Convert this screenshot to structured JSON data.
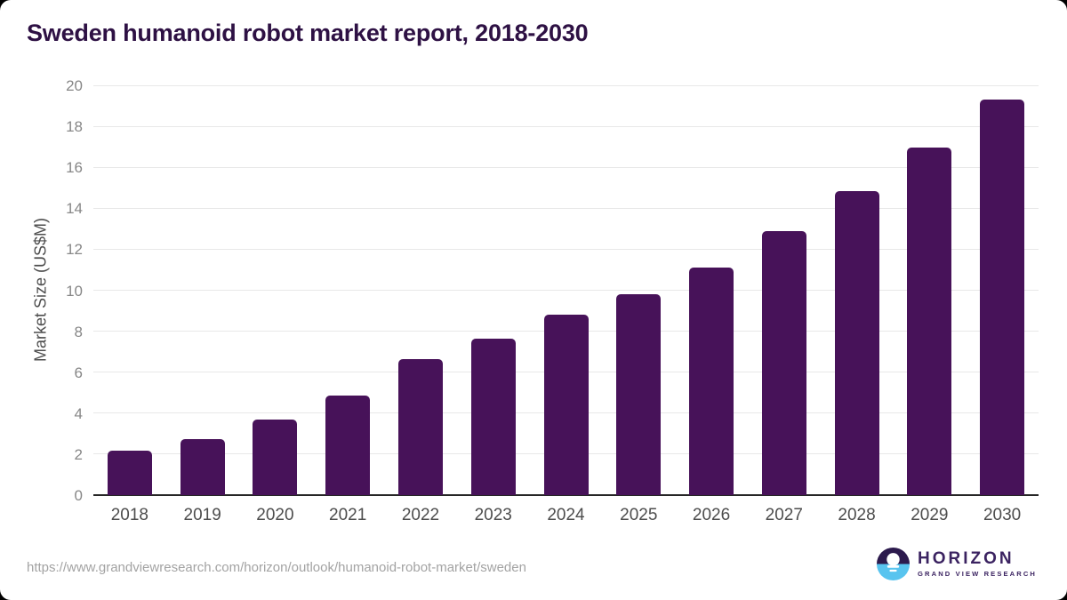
{
  "header": {
    "title": "Sweden humanoid robot market report, 2018-2030"
  },
  "chart_data": {
    "type": "bar",
    "categories": [
      "2018",
      "2019",
      "2020",
      "2021",
      "2022",
      "2023",
      "2024",
      "2025",
      "2026",
      "2027",
      "2028",
      "2029",
      "2030"
    ],
    "values": [
      2.15,
      2.75,
      3.7,
      4.85,
      6.65,
      7.65,
      8.8,
      9.8,
      11.1,
      12.9,
      14.85,
      16.95,
      19.3
    ],
    "title": "Sweden humanoid robot market report, 2018-2030",
    "xlabel": "",
    "ylabel": "Market Size (US$M)",
    "ylim": [
      0,
      20
    ],
    "ytick_step": 2,
    "grid": true,
    "legend": false,
    "bar_color": "#471259"
  },
  "footer": {
    "source_url": "https://www.grandviewresearch.com/horizon/outlook/humanoid-robot-market/sweden",
    "logo": {
      "brand": "HORIZON",
      "tagline": "GRAND VIEW RESEARCH"
    }
  },
  "colors": {
    "bar": "#471259",
    "title_text": "#2e1144",
    "axis_line": "#262626",
    "gridline": "#e8e8e8",
    "tick_label": "#878787",
    "x_label": "#4d4d4d",
    "url_text": "#a3a3a3",
    "logo_dark": "#2c1a4d",
    "logo_blue": "#58c4ef",
    "logo_text": "#3b2361"
  }
}
